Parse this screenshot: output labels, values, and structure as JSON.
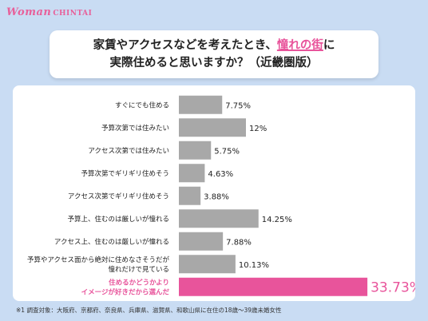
{
  "brand": {
    "logo_word1": "Woman",
    "logo_word2": "CHINTAI"
  },
  "title": {
    "part1": "家賃やアクセスなどを考えたとき、",
    "highlight": "憧れの街",
    "part2": "に",
    "line2": "実際住めると思いますか？（近畿圏版）"
  },
  "footnote": "※1 調査対象：大阪府、京都府、奈良県、兵庫県、滋賀県、和歌山県に在住の18歳～39歳未婚女性",
  "colors": {
    "bar_default": "#a8a8a8",
    "bar_highlight": "#e8549b",
    "label_highlight": "#e8549b",
    "background": "#c9dcf3"
  },
  "chart_data": {
    "type": "bar",
    "orientation": "horizontal",
    "unit": "%",
    "xlim": [
      0,
      34
    ],
    "categories": [
      [
        "すぐにでも住める"
      ],
      [
        "予算次第では住みたい"
      ],
      [
        "アクセス次第では住みたい"
      ],
      [
        "予算次第でギリギリ住めそう"
      ],
      [
        "アクセス次第でギリギリ住めそう"
      ],
      [
        "予算上、住むのは厳しいが憧れる"
      ],
      [
        "アクセス上、住むのは厳しいが憧れる"
      ],
      [
        "予算やアクセス面から絶対に住めなさそうだが",
        "憧れだけで見ている"
      ],
      [
        "住めるかどうかより",
        "イメージが好きだから選んだ"
      ]
    ],
    "values": [
      7.75,
      12,
      5.75,
      4.63,
      3.88,
      14.25,
      7.88,
      10.13,
      33.73
    ],
    "value_labels": [
      "7.75%",
      "12%",
      "5.75%",
      "4.63%",
      "3.88%",
      "14.25%",
      "7.88%",
      "10.13%",
      "33.73%"
    ],
    "highlight_index": 8
  }
}
